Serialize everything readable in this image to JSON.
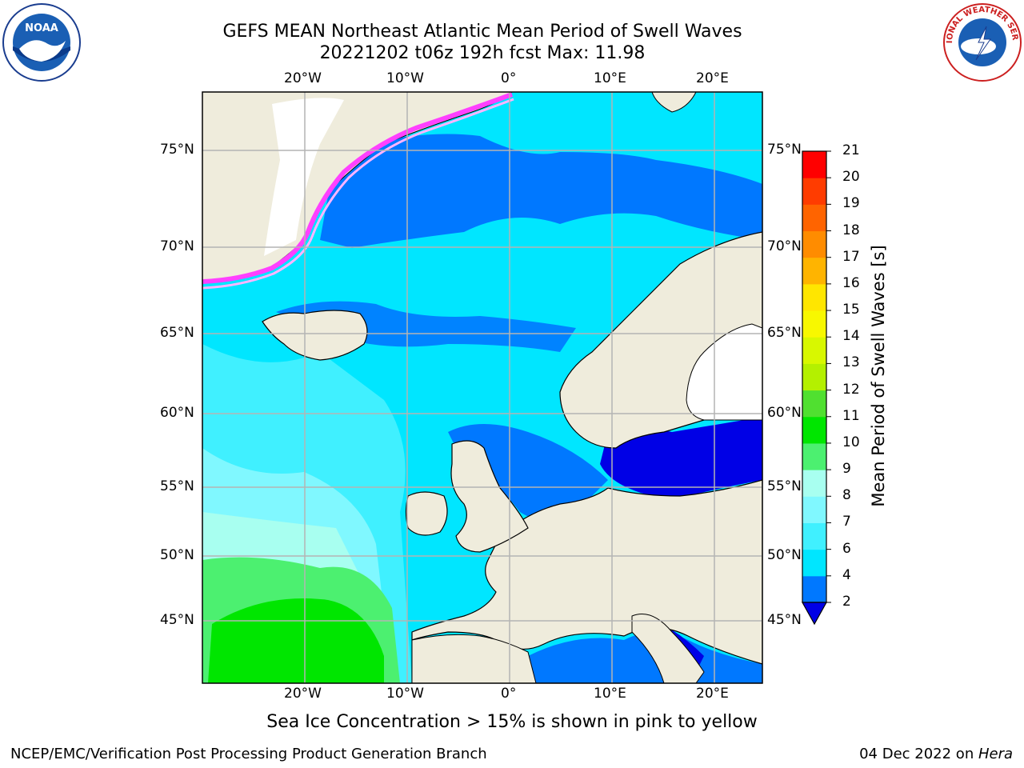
{
  "title": {
    "line1": "GEFS MEAN Northeast Atlantic Mean Period of Swell Waves",
    "line2": "20221202 t06z 192h fcst   Max: 11.98"
  },
  "map": {
    "lon_labels": [
      "20°W",
      "10°W",
      "0°",
      "10°E",
      "20°E"
    ],
    "lat_labels_left": [
      "75°N",
      "70°N",
      "65°N",
      "60°N",
      "55°N",
      "50°N",
      "45°N"
    ],
    "lat_labels_right": [
      "75°N",
      "70°N",
      "65°N",
      "60°N",
      "55°N",
      "50°N",
      "45°N"
    ],
    "caption": "Sea Ice Concentration > 15% is shown in pink to yellow",
    "land_color": "#efecdc",
    "gridline_color": "#b4b4b4"
  },
  "colorbar": {
    "title": "Mean Period of Swell Waves [s]",
    "ticks": [
      "2",
      "4",
      "6",
      "7",
      "8",
      "9",
      "10",
      "11",
      "12",
      "13",
      "14",
      "15",
      "16",
      "17",
      "18",
      "19",
      "20",
      "21"
    ],
    "colors": [
      "#0078ff",
      "#00e6ff",
      "#40f0ff",
      "#80f8ff",
      "#a8fff0",
      "#4cf070",
      "#00e600",
      "#50e030",
      "#b4f000",
      "#d8f800",
      "#f8f800",
      "#ffe600",
      "#ffb400",
      "#ff8c00",
      "#ff6400",
      "#ff3c00",
      "#ff0000"
    ],
    "extend_color": "#0000e6"
  },
  "logos": {
    "left": "NOAA",
    "right": "NATIONAL WEATHER SERVICE"
  },
  "footer": {
    "left": "NCEP/EMC/Verification Post Processing Product Generation Branch",
    "right_date": "04 Dec 2022 on ",
    "right_machine": "Hera"
  }
}
